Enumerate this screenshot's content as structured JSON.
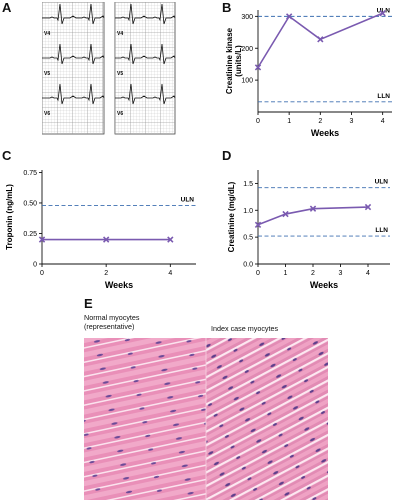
{
  "panels": {
    "A": {
      "letter": "A",
      "lead_labels_left": [
        "V4",
        "V5",
        "V6"
      ],
      "lead_labels_right": [
        "V4",
        "V5",
        "V6"
      ]
    },
    "B": {
      "letter": "B",
      "chart_data": {
        "type": "line",
        "ylabel_lines": [
          "Creatinine kinase",
          "(units/L)"
        ],
        "xlabel": "Weeks",
        "x": [
          0,
          1,
          2,
          4
        ],
        "y": [
          140,
          300,
          228,
          310
        ],
        "xlim": [
          0,
          4.3
        ],
        "ylim": [
          0,
          320
        ],
        "xticks": [
          "0",
          "1",
          "2",
          "3",
          "4"
        ],
        "yticks": [
          "100",
          "200",
          "300"
        ],
        "reference_lines": [
          {
            "label": "ULN",
            "value": 300
          },
          {
            "label": "LLN",
            "value": 32
          }
        ],
        "color": "#7a5ab0",
        "ref_color": "#3d6fb0"
      }
    },
    "C": {
      "letter": "C",
      "chart_data": {
        "type": "line",
        "ylabel": "Troponin (ng/mL)",
        "xlabel": "Weeks",
        "x": [
          0,
          2,
          4
        ],
        "y": [
          0.2,
          0.2,
          0.2
        ],
        "xlim": [
          0,
          4.8
        ],
        "ylim": [
          0,
          0.77
        ],
        "xticks": [
          "0",
          "2",
          "4"
        ],
        "yticks": [
          "0",
          "0.25",
          "0.50",
          "0.75"
        ],
        "reference_lines": [
          {
            "label": "ULN",
            "value": 0.48
          }
        ],
        "color": "#7a5ab0",
        "ref_color": "#3d6fb0"
      }
    },
    "D": {
      "letter": "D",
      "chart_data": {
        "type": "line",
        "ylabel": "Creatinine (mg/dL)",
        "xlabel": "Weeks",
        "x": [
          0,
          1,
          2,
          4
        ],
        "y": [
          0.73,
          0.93,
          1.03,
          1.06
        ],
        "xlim": [
          0,
          4.8
        ],
        "ylim": [
          0,
          1.75
        ],
        "xticks": [
          "0",
          "1",
          "2",
          "3",
          "4"
        ],
        "yticks": [
          "0.0",
          "0.5",
          "1.0",
          "1.5"
        ],
        "reference_lines": [
          {
            "label": "ULN",
            "value": 1.42
          },
          {
            "label": "LLN",
            "value": 0.52
          }
        ],
        "color": "#7a5ab0",
        "ref_color": "#3d6fb0"
      }
    },
    "E": {
      "letter": "E",
      "caption_left_1": "Normal myocytes",
      "caption_left_2": "(representative)",
      "caption_right": "Index case myocytes"
    }
  }
}
